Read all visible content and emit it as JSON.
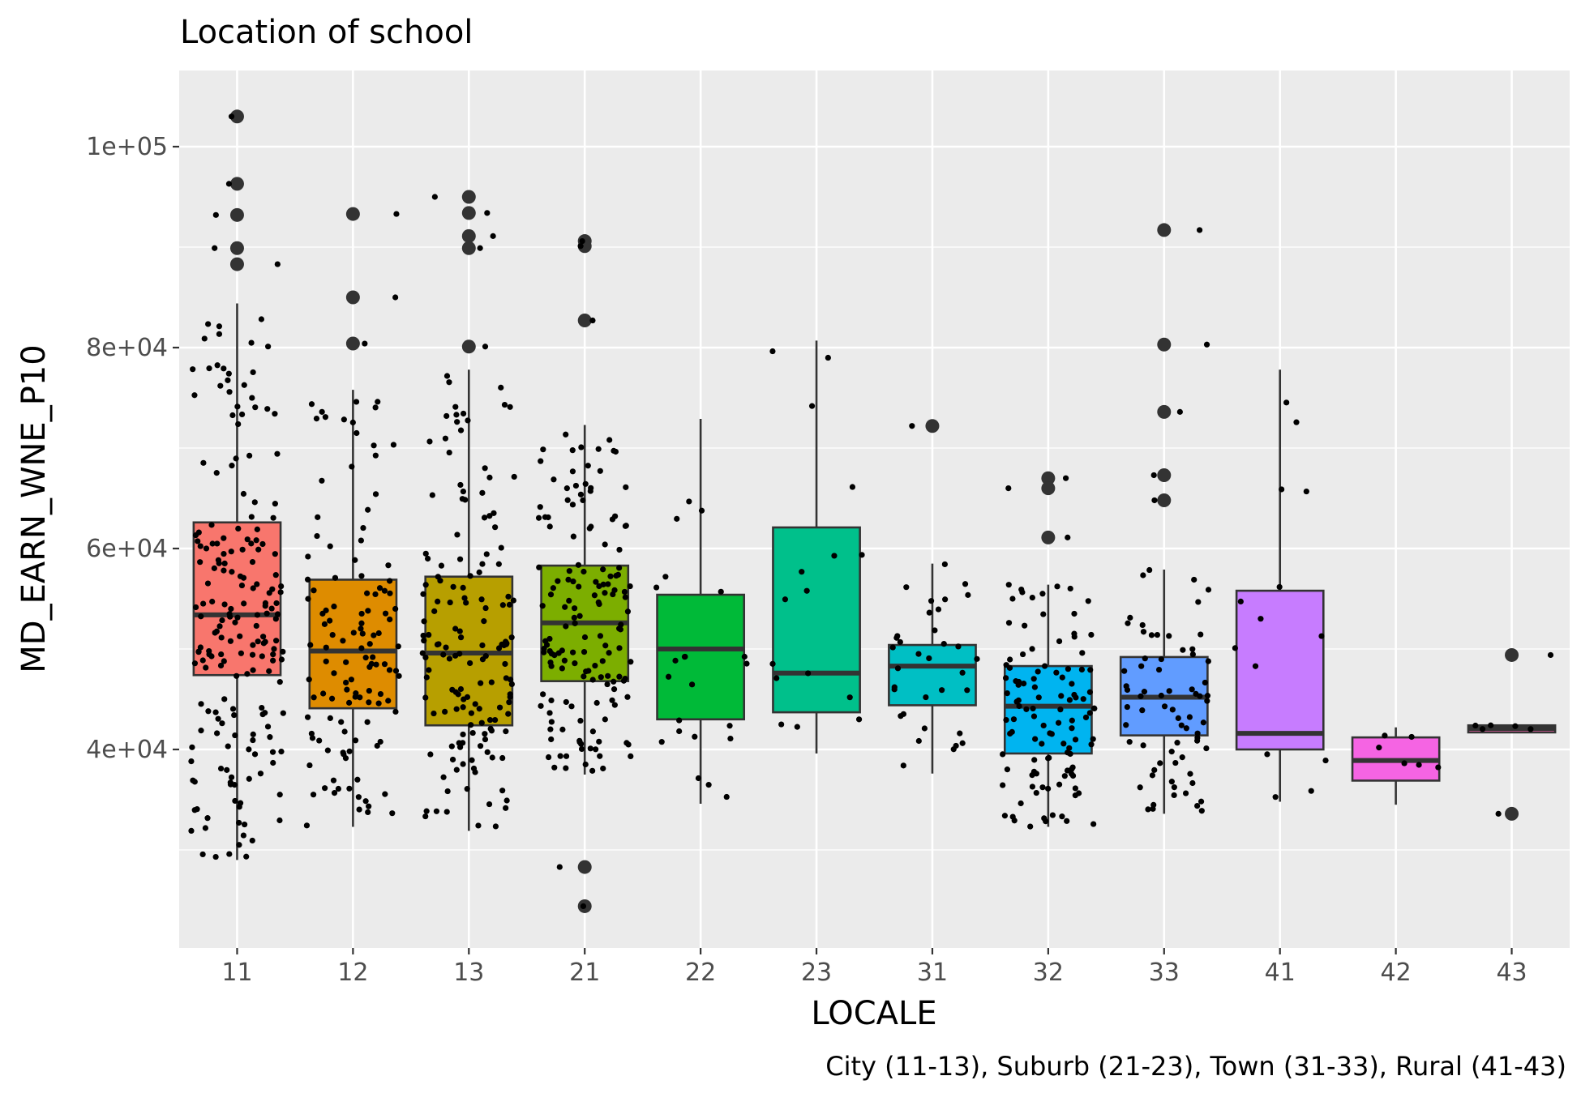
{
  "chart_data": {
    "type": "box",
    "title": "Location of school",
    "xlabel": "LOCALE",
    "ylabel": "MD_EARN_WNE_P10",
    "caption": "City (11-13), Suburb (21-23), Town (31-33), Rural (41-43)",
    "categories": [
      "11",
      "12",
      "13",
      "21",
      "22",
      "23",
      "31",
      "32",
      "33",
      "41",
      "42",
      "43"
    ],
    "y_ticks": [
      40000,
      60000,
      80000,
      100000
    ],
    "y_tick_labels": [
      "4e+04",
      "6e+04",
      "8e+04",
      "1e+05"
    ],
    "ylim": [
      20000,
      107000
    ],
    "grid": true,
    "legend": "none",
    "colors": [
      "#F8766D",
      "#DE8C00",
      "#B79F00",
      "#7CAE00",
      "#00BA38",
      "#00C08B",
      "#00BFC4",
      "#00B4F0",
      "#619CFF",
      "#C77CFF",
      "#F564E3",
      "#FF64B0"
    ],
    "boxes": [
      {
        "locale": "11",
        "lower_whisker": 29000,
        "q1": 47400,
        "median": 53400,
        "q3": 62600,
        "upper_whisker": 84400,
        "outliers": [
          103000,
          96300,
          93200,
          89900,
          88300
        ]
      },
      {
        "locale": "12",
        "lower_whisker": 32300,
        "q1": 44100,
        "median": 49800,
        "q3": 56900,
        "upper_whisker": 75800,
        "outliers": [
          93300,
          85000,
          80400
        ]
      },
      {
        "locale": "13",
        "lower_whisker": 31900,
        "q1": 42400,
        "median": 49600,
        "q3": 57200,
        "upper_whisker": 77800,
        "outliers": [
          95000,
          93400,
          91100,
          89900,
          80100
        ]
      },
      {
        "locale": "21",
        "lower_whisker": 37500,
        "q1": 46800,
        "median": 52600,
        "q3": 58300,
        "upper_whisker": 72300,
        "outliers": [
          90600,
          90100,
          82700,
          28300,
          24400
        ]
      },
      {
        "locale": "22",
        "lower_whisker": 34600,
        "q1": 43000,
        "median": 50000,
        "q3": 55400,
        "upper_whisker": 72900,
        "outliers": []
      },
      {
        "locale": "23",
        "lower_whisker": 39600,
        "q1": 43700,
        "median": 47600,
        "q3": 62100,
        "upper_whisker": 80700,
        "outliers": []
      },
      {
        "locale": "31",
        "lower_whisker": 37600,
        "q1": 44400,
        "median": 48300,
        "q3": 50400,
        "upper_whisker": 58500,
        "outliers": [
          72200
        ]
      },
      {
        "locale": "32",
        "lower_whisker": 32300,
        "q1": 39600,
        "median": 44300,
        "q3": 48300,
        "upper_whisker": 56400,
        "outliers": [
          67000,
          66000,
          61100
        ]
      },
      {
        "locale": "33",
        "lower_whisker": 33600,
        "q1": 41400,
        "median": 45200,
        "q3": 49200,
        "upper_whisker": 57900,
        "outliers": [
          91700,
          80300,
          73600,
          67300,
          64800
        ]
      },
      {
        "locale": "41",
        "lower_whisker": 34800,
        "q1": 40000,
        "median": 41600,
        "q3": 55800,
        "upper_whisker": 77800,
        "outliers": []
      },
      {
        "locale": "42",
        "lower_whisker": 34500,
        "q1": 36900,
        "median": 38900,
        "q3": 41200,
        "upper_whisker": 42200,
        "outliers": []
      },
      {
        "locale": "43",
        "lower_whisker": 41700,
        "q1": 41700,
        "median": 42100,
        "q3": 42400,
        "upper_whisker": 42400,
        "outliers": [
          49400,
          33600
        ]
      }
    ]
  }
}
